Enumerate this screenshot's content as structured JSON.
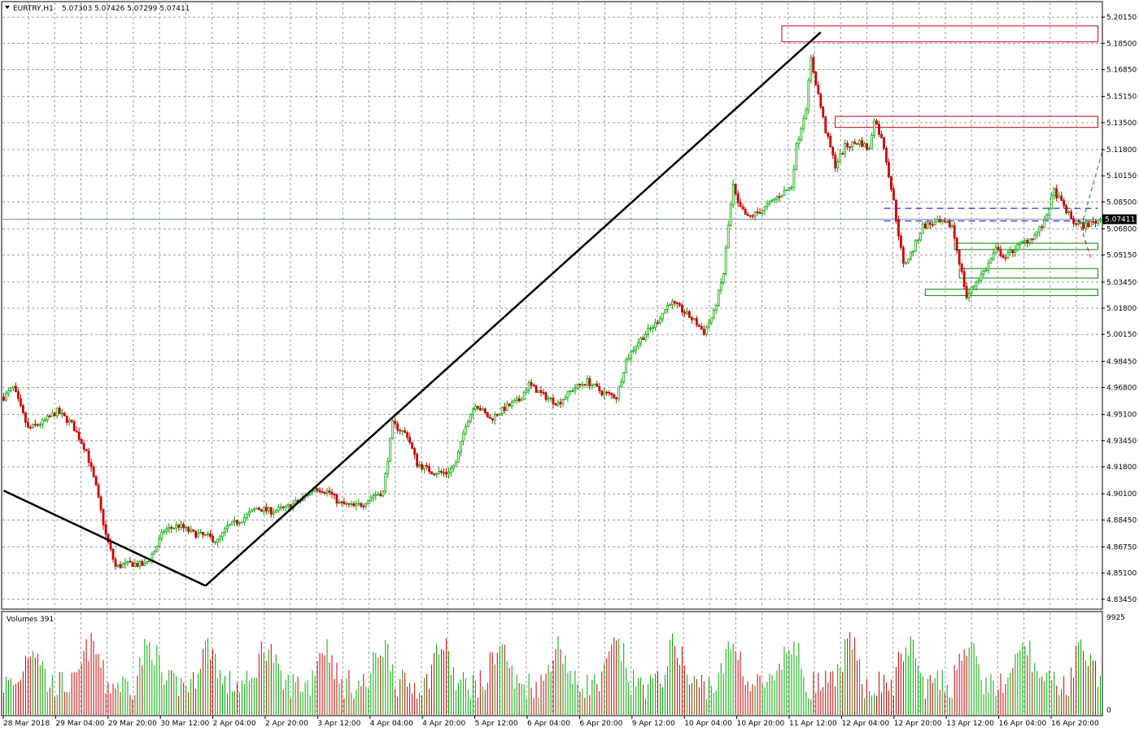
{
  "window": {
    "symbol_label": "EURTRY,H1",
    "ohlc_label": "5.07303 5.07426 5.07299 5.07411",
    "menu_icon": "triangle-down-icon"
  },
  "chart_data": {
    "type": "candlestick",
    "symbol": "EURTRY",
    "timeframe": "H1",
    "ylim": [
      4.8288,
      5.2108
    ],
    "y_ticks": [
      "5.20150",
      "5.18500",
      "5.16850",
      "5.15150",
      "5.13500",
      "5.11800",
      "5.10150",
      "5.08500",
      "5.06800",
      "5.05150",
      "5.03450",
      "5.01800",
      "5.00150",
      "4.98450",
      "4.96800",
      "4.95100",
      "4.93450",
      "4.91800",
      "4.90100",
      "4.88450",
      "4.86750",
      "4.85100",
      "4.83450"
    ],
    "x_ticks": [
      "28 Mar 2018",
      "29 Mar 04:00",
      "29 Mar 20:00",
      "30 Mar 12:00",
      "2 Apr 04:00",
      "2 Apr 20:00",
      "3 Apr 12:00",
      "4 Apr 04:00",
      "4 Apr 20:00",
      "5 Apr 12:00",
      "6 Apr 04:00",
      "6 Apr 20:00",
      "9 Apr 12:00",
      "10 Apr 04:00",
      "10 Apr 20:00",
      "11 Apr 12:00",
      "12 Apr 04:00",
      "12 Apr 20:00",
      "13 Apr 12:00",
      "16 Apr 04:00",
      "16 Apr 20:00"
    ],
    "current_price": "5.07411",
    "bull_color": "#00aa00",
    "bear_color": "#cc0000",
    "keypoints": [
      [
        0,
        4.962
      ],
      [
        4,
        4.968
      ],
      [
        10,
        4.942
      ],
      [
        16,
        4.946
      ],
      [
        22,
        4.953
      ],
      [
        28,
        4.945
      ],
      [
        34,
        4.928
      ],
      [
        38,
        4.905
      ],
      [
        42,
        4.875
      ],
      [
        46,
        4.855
      ],
      [
        52,
        4.857
      ],
      [
        58,
        4.856
      ],
      [
        62,
        4.865
      ],
      [
        66,
        4.878
      ],
      [
        72,
        4.881
      ],
      [
        78,
        4.876
      ],
      [
        84,
        4.874
      ],
      [
        88,
        4.871
      ],
      [
        92,
        4.88
      ],
      [
        98,
        4.885
      ],
      [
        104,
        4.892
      ],
      [
        110,
        4.89
      ],
      [
        116,
        4.892
      ],
      [
        122,
        4.897
      ],
      [
        128,
        4.905
      ],
      [
        134,
        4.902
      ],
      [
        138,
        4.895
      ],
      [
        144,
        4.893
      ],
      [
        148,
        4.895
      ],
      [
        152,
        4.9
      ],
      [
        156,
        4.902
      ],
      [
        160,
        4.945
      ],
      [
        166,
        4.938
      ],
      [
        170,
        4.92
      ],
      [
        176,
        4.915
      ],
      [
        182,
        4.914
      ],
      [
        186,
        4.92
      ],
      [
        190,
        4.945
      ],
      [
        194,
        4.958
      ],
      [
        200,
        4.948
      ],
      [
        206,
        4.955
      ],
      [
        212,
        4.96
      ],
      [
        216,
        4.97
      ],
      [
        222,
        4.963
      ],
      [
        228,
        4.958
      ],
      [
        234,
        4.967
      ],
      [
        240,
        4.972
      ],
      [
        246,
        4.965
      ],
      [
        252,
        4.962
      ],
      [
        256,
        4.985
      ],
      [
        260,
        4.995
      ],
      [
        264,
        5.002
      ],
      [
        268,
        5.008
      ],
      [
        274,
        5.022
      ],
      [
        278,
        5.018
      ],
      [
        284,
        5.01
      ],
      [
        288,
        5.003
      ],
      [
        292,
        5.015
      ],
      [
        296,
        5.04
      ],
      [
        298,
        5.07
      ],
      [
        300,
        5.095
      ],
      [
        302,
        5.083
      ],
      [
        306,
        5.075
      ],
      [
        312,
        5.08
      ],
      [
        318,
        5.088
      ],
      [
        324,
        5.095
      ],
      [
        326,
        5.12
      ],
      [
        330,
        5.145
      ],
      [
        332,
        5.175
      ],
      [
        334,
        5.16
      ],
      [
        338,
        5.13
      ],
      [
        342,
        5.108
      ],
      [
        346,
        5.12
      ],
      [
        352,
        5.123
      ],
      [
        356,
        5.118
      ],
      [
        358,
        5.138
      ],
      [
        362,
        5.12
      ],
      [
        366,
        5.085
      ],
      [
        370,
        5.045
      ],
      [
        374,
        5.055
      ],
      [
        378,
        5.07
      ],
      [
        384,
        5.072
      ],
      [
        390,
        5.07
      ],
      [
        394,
        5.04
      ],
      [
        396,
        5.025
      ],
      [
        400,
        5.035
      ],
      [
        404,
        5.043
      ],
      [
        408,
        5.055
      ],
      [
        412,
        5.05
      ],
      [
        416,
        5.056
      ],
      [
        420,
        5.06
      ],
      [
        424,
        5.064
      ],
      [
        428,
        5.072
      ],
      [
        432,
        5.092
      ],
      [
        436,
        5.082
      ],
      [
        440,
        5.072
      ],
      [
        444,
        5.07
      ],
      [
        448,
        5.072
      ],
      [
        451,
        5.074
      ]
    ],
    "volume_label": "Volumes 391",
    "volume_ylim": [
      0,
      9925
    ],
    "volume_ticks": [
      "9925",
      "0"
    ],
    "trendlines": [
      {
        "from": [
          0,
          4.903
        ],
        "to": [
          83,
          4.843
        ],
        "color": "#000000"
      },
      {
        "from": [
          83,
          4.843
        ],
        "to": [
          336,
          5.192
        ],
        "color": "#000000"
      }
    ],
    "resistance_zones": [
      {
        "x_from": 320,
        "x_to": 450,
        "y_from": 5.186,
        "y_to": 5.196,
        "color": "#cc0000"
      },
      {
        "x_from": 342,
        "x_to": 450,
        "y_from": 5.132,
        "y_to": 5.139,
        "color": "#cc0000"
      }
    ],
    "support_zones": [
      {
        "x_from": 391,
        "x_to": 450,
        "y_from": 5.055,
        "y_to": 5.059,
        "color": "#008800"
      },
      {
        "x_from": 393,
        "x_to": 450,
        "y_from": 5.037,
        "y_to": 5.043,
        "color": "#008800"
      },
      {
        "x_from": 379,
        "x_to": 450,
        "y_from": 5.026,
        "y_to": 5.03,
        "color": "#008800"
      }
    ],
    "dashed_levels": [
      {
        "x_from": 362,
        "x_to": 450,
        "y": 5.081,
        "color": "#0000cc"
      },
      {
        "x_from": 362,
        "x_to": 450,
        "y": 5.073,
        "color": "#0000cc"
      }
    ],
    "projections": [
      {
        "from": [
          444,
          5.074
        ],
        "to": [
          452,
          5.118
        ],
        "color": "#008800"
      },
      {
        "from": [
          442,
          5.074
        ],
        "to": [
          447,
          5.05
        ],
        "color": "#cc0000"
      }
    ]
  }
}
